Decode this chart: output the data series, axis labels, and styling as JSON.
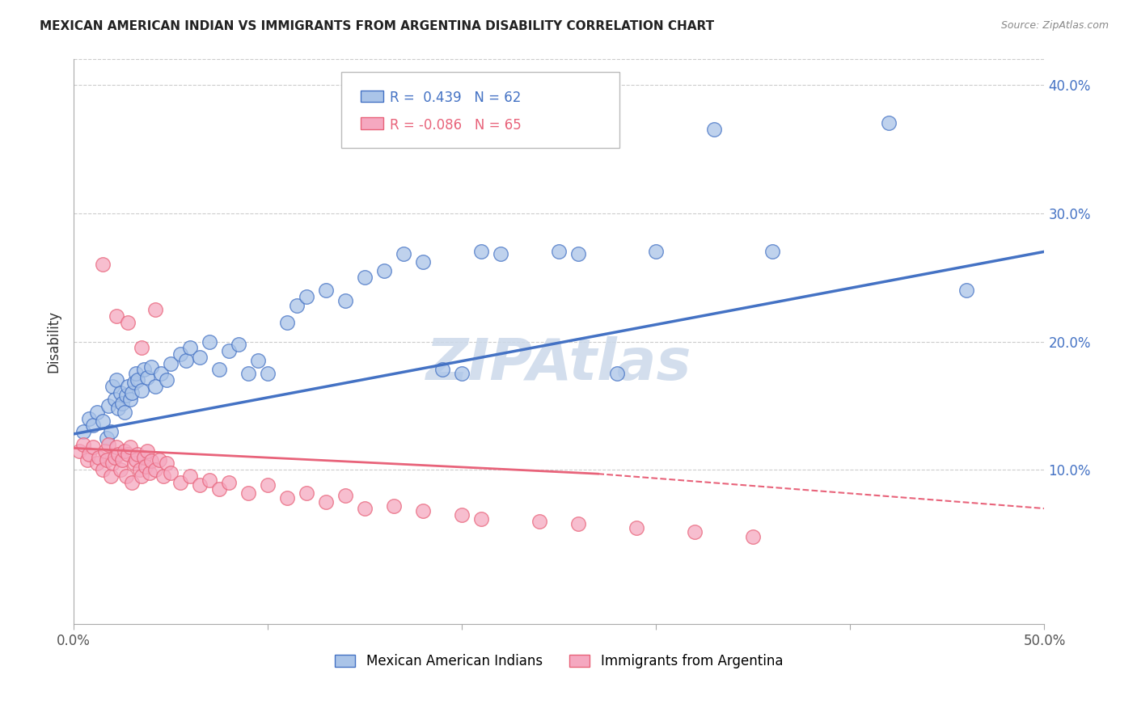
{
  "title": "MEXICAN AMERICAN INDIAN VS IMMIGRANTS FROM ARGENTINA DISABILITY CORRELATION CHART",
  "source": "Source: ZipAtlas.com",
  "ylabel": "Disability",
  "xmin": 0.0,
  "xmax": 0.5,
  "ymin": -0.02,
  "ymax": 0.42,
  "yticks": [
    0.1,
    0.2,
    0.3,
    0.4
  ],
  "ytick_labels": [
    "10.0%",
    "20.0%",
    "30.0%",
    "40.0%"
  ],
  "xticks": [
    0.0,
    0.1,
    0.2,
    0.3,
    0.4,
    0.5
  ],
  "xtick_labels": [
    "0.0%",
    "",
    "",
    "",
    "",
    "50.0%"
  ],
  "blue_R": 0.439,
  "blue_N": 62,
  "pink_R": -0.086,
  "pink_N": 65,
  "blue_color": "#aac4e8",
  "pink_color": "#f5a8c0",
  "blue_line_color": "#4472c4",
  "pink_line_color": "#e8637a",
  "watermark": "ZIPAtlas",
  "legend_label_blue": "Mexican American Indians",
  "legend_label_pink": "Immigrants from Argentina",
  "blue_scatter_x": [
    0.005,
    0.008,
    0.01,
    0.012,
    0.015,
    0.017,
    0.018,
    0.019,
    0.02,
    0.021,
    0.022,
    0.023,
    0.024,
    0.025,
    0.026,
    0.027,
    0.028,
    0.029,
    0.03,
    0.031,
    0.032,
    0.033,
    0.035,
    0.036,
    0.038,
    0.04,
    0.042,
    0.045,
    0.048,
    0.05,
    0.055,
    0.058,
    0.06,
    0.065,
    0.07,
    0.075,
    0.08,
    0.085,
    0.09,
    0.095,
    0.1,
    0.11,
    0.115,
    0.12,
    0.13,
    0.14,
    0.15,
    0.16,
    0.17,
    0.18,
    0.19,
    0.2,
    0.21,
    0.22,
    0.25,
    0.26,
    0.28,
    0.3,
    0.33,
    0.36,
    0.42,
    0.46
  ],
  "blue_scatter_y": [
    0.13,
    0.14,
    0.135,
    0.145,
    0.138,
    0.125,
    0.15,
    0.13,
    0.165,
    0.155,
    0.17,
    0.148,
    0.16,
    0.152,
    0.145,
    0.158,
    0.165,
    0.155,
    0.16,
    0.168,
    0.175,
    0.17,
    0.162,
    0.178,
    0.172,
    0.18,
    0.165,
    0.175,
    0.17,
    0.183,
    0.19,
    0.185,
    0.195,
    0.188,
    0.2,
    0.178,
    0.193,
    0.198,
    0.175,
    0.185,
    0.175,
    0.215,
    0.228,
    0.235,
    0.24,
    0.232,
    0.25,
    0.255,
    0.268,
    0.262,
    0.178,
    0.175,
    0.27,
    0.268,
    0.27,
    0.268,
    0.175,
    0.27,
    0.365,
    0.27,
    0.37,
    0.24
  ],
  "pink_scatter_x": [
    0.003,
    0.005,
    0.007,
    0.008,
    0.01,
    0.012,
    0.013,
    0.015,
    0.016,
    0.017,
    0.018,
    0.019,
    0.02,
    0.021,
    0.022,
    0.023,
    0.024,
    0.025,
    0.026,
    0.027,
    0.028,
    0.029,
    0.03,
    0.031,
    0.032,
    0.033,
    0.034,
    0.035,
    0.036,
    0.037,
    0.038,
    0.039,
    0.04,
    0.042,
    0.044,
    0.046,
    0.048,
    0.05,
    0.055,
    0.06,
    0.065,
    0.07,
    0.075,
    0.08,
    0.09,
    0.1,
    0.11,
    0.12,
    0.13,
    0.14,
    0.15,
    0.165,
    0.18,
    0.2,
    0.21,
    0.24,
    0.26,
    0.29,
    0.32,
    0.35,
    0.015,
    0.022,
    0.028,
    0.035,
    0.042
  ],
  "pink_scatter_y": [
    0.115,
    0.12,
    0.108,
    0.112,
    0.118,
    0.105,
    0.11,
    0.1,
    0.115,
    0.108,
    0.12,
    0.095,
    0.105,
    0.11,
    0.118,
    0.112,
    0.1,
    0.108,
    0.115,
    0.095,
    0.112,
    0.118,
    0.09,
    0.105,
    0.108,
    0.112,
    0.1,
    0.095,
    0.11,
    0.103,
    0.115,
    0.098,
    0.107,
    0.1,
    0.108,
    0.095,
    0.105,
    0.098,
    0.09,
    0.095,
    0.088,
    0.092,
    0.085,
    0.09,
    0.082,
    0.088,
    0.078,
    0.082,
    0.075,
    0.08,
    0.07,
    0.072,
    0.068,
    0.065,
    0.062,
    0.06,
    0.058,
    0.055,
    0.052,
    0.048,
    0.26,
    0.22,
    0.215,
    0.195,
    0.225
  ]
}
